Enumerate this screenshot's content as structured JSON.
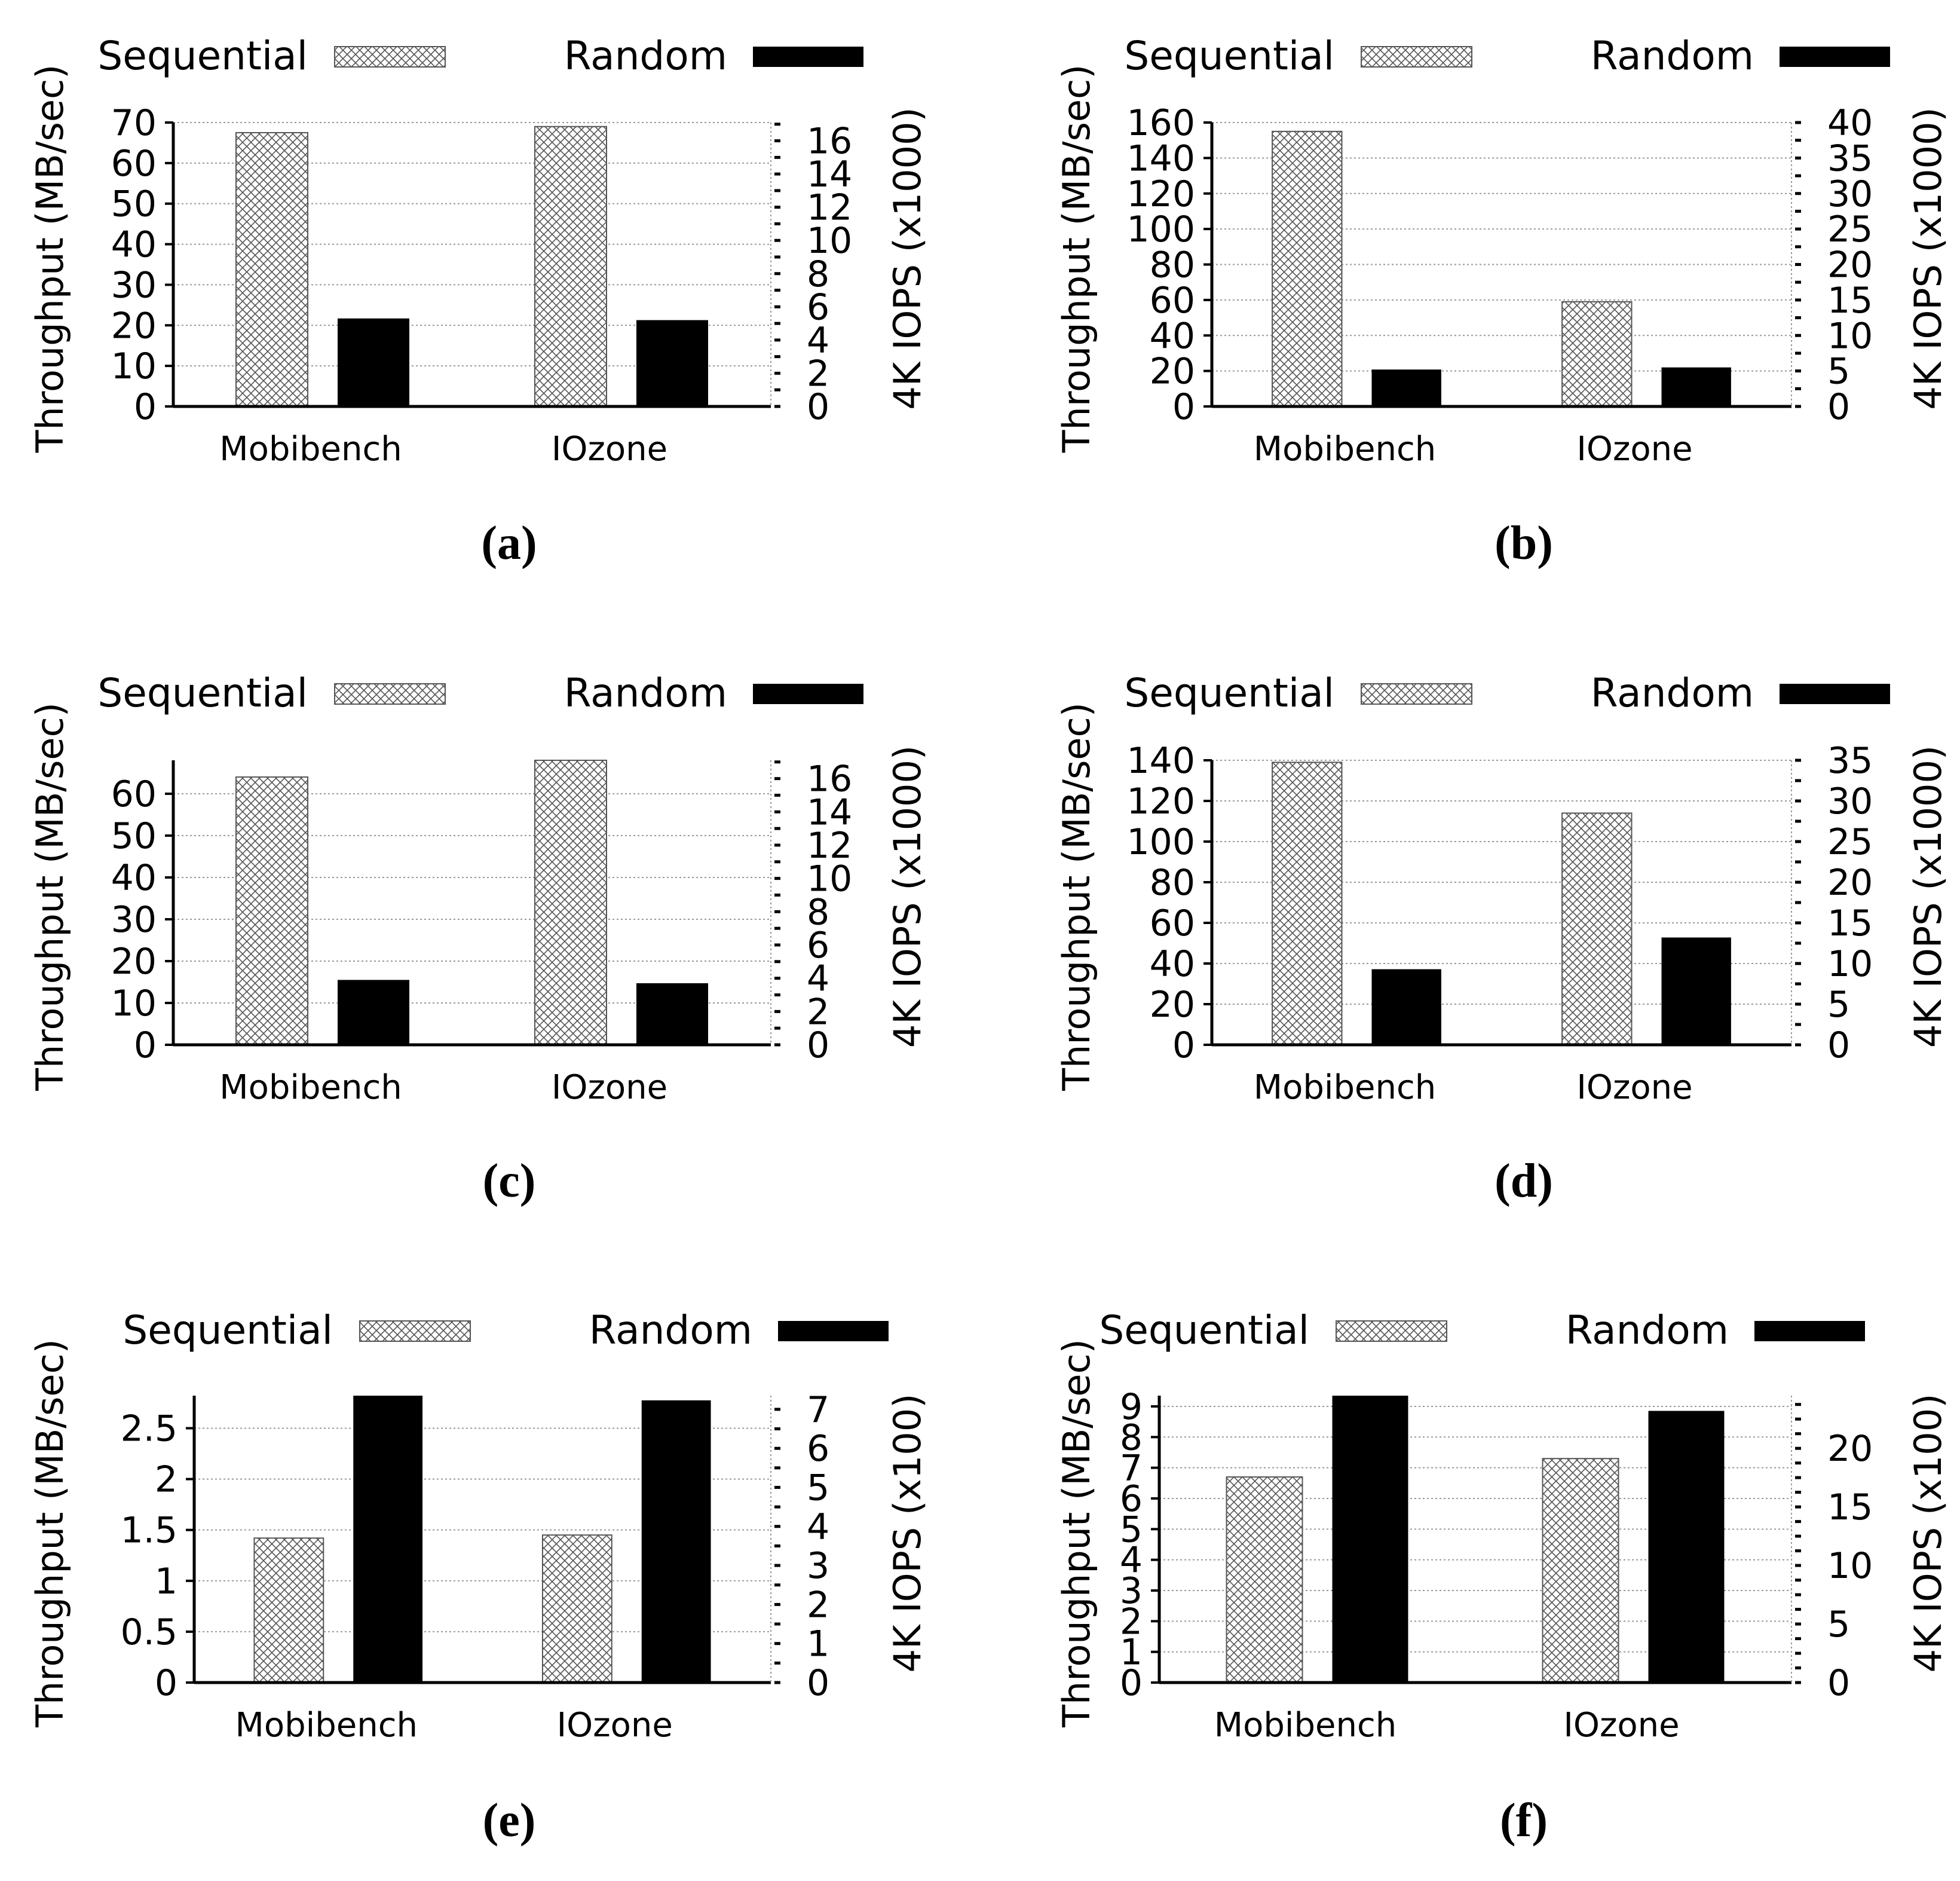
{
  "figure": {
    "legend": {
      "sequential_label": "Sequential",
      "random_label": "Random"
    },
    "colors": {
      "bar_random": "#000000",
      "hatch_stroke": "#555555",
      "grid": "#999999",
      "axis": "#000000",
      "background": "#ffffff"
    },
    "left_axis_label": "Throughput (MB/sec)"
  },
  "chart_data": [
    {
      "type": "bar",
      "panel": "a",
      "caption": "(a)",
      "categories": [
        "Mobibench",
        "IOzone"
      ],
      "series": [
        {
          "name": "Sequential",
          "axis": "left",
          "values": [
            67.5,
            69
          ]
        },
        {
          "name": "Random",
          "axis": "right",
          "values": [
            5.3,
            5.2
          ]
        }
      ],
      "ylabel": "Throughput (MB/sec)",
      "ylim": [
        0,
        70
      ],
      "yticks": [
        0,
        10,
        20,
        30,
        40,
        50,
        60,
        70
      ],
      "y2label": "4K IOPS (x1000)",
      "y2lim": [
        0,
        17.1
      ],
      "y2ticks": [
        0,
        2,
        4,
        6,
        8,
        10,
        12,
        14,
        16
      ],
      "y2minor": 1,
      "grid": true,
      "legend": "top"
    },
    {
      "type": "bar",
      "panel": "b",
      "caption": "(b)",
      "categories": [
        "Mobibench",
        "IOzone"
      ],
      "series": [
        {
          "name": "Sequential",
          "axis": "left",
          "values": [
            155,
            59
          ]
        },
        {
          "name": "Random",
          "axis": "right",
          "values": [
            5.2,
            5.5
          ]
        }
      ],
      "ylabel": "Throughput (MB/sec)",
      "ylim": [
        0,
        160
      ],
      "yticks": [
        0,
        20,
        40,
        60,
        80,
        100,
        120,
        140,
        160
      ],
      "y2label": "4K IOPS (x1000)",
      "y2lim": [
        0,
        40
      ],
      "y2ticks": [
        0,
        5,
        10,
        15,
        20,
        25,
        30,
        35,
        40
      ],
      "y2minor": 2.5,
      "grid": true,
      "legend": "top"
    },
    {
      "type": "bar",
      "panel": "c",
      "caption": "(c)",
      "categories": [
        "Mobibench",
        "IOzone"
      ],
      "series": [
        {
          "name": "Sequential",
          "axis": "left",
          "values": [
            64,
            68
          ]
        },
        {
          "name": "Random",
          "axis": "right",
          "values": [
            3.9,
            3.7
          ]
        }
      ],
      "ylabel": "Throughput (MB/sec)",
      "ylim": [
        0,
        68
      ],
      "yticks": [
        0,
        10,
        20,
        30,
        40,
        50,
        60
      ],
      "y2label": "4K IOPS (x1000)",
      "y2lim": [
        0,
        17.1
      ],
      "y2ticks": [
        0,
        2,
        4,
        6,
        8,
        10,
        12,
        14,
        16
      ],
      "y2minor": 1,
      "grid": true,
      "legend": "top"
    },
    {
      "type": "bar",
      "panel": "d",
      "caption": "(d)",
      "categories": [
        "Mobibench",
        "IOzone"
      ],
      "series": [
        {
          "name": "Sequential",
          "axis": "left",
          "values": [
            139,
            114
          ]
        },
        {
          "name": "Random",
          "axis": "right",
          "values": [
            9.3,
            13.2
          ]
        }
      ],
      "ylabel": "Throughput (MB/sec)",
      "ylim": [
        0,
        140
      ],
      "yticks": [
        0,
        20,
        40,
        60,
        80,
        100,
        120,
        140
      ],
      "y2label": "4K IOPS (x1000)",
      "y2lim": [
        0,
        35
      ],
      "y2ticks": [
        0,
        5,
        10,
        15,
        20,
        25,
        30,
        35
      ],
      "y2minor": 2.5,
      "grid": true,
      "legend": "top"
    },
    {
      "type": "bar",
      "panel": "e",
      "caption": "(e)",
      "categories": [
        "Mobibench",
        "IOzone"
      ],
      "series": [
        {
          "name": "Sequential",
          "axis": "left",
          "values": [
            1.42,
            1.45
          ]
        },
        {
          "name": "Random",
          "axis": "right",
          "values": [
            7.35,
            7.23
          ]
        }
      ],
      "ylabel": "Throughput (MB/sec)",
      "ylim": [
        0,
        2.82
      ],
      "yticks": [
        0,
        0.5,
        1,
        1.5,
        2,
        2.5
      ],
      "y2label": "4K IOPS (x100)",
      "y2lim": [
        0,
        7.35
      ],
      "y2ticks": [
        0,
        1,
        2,
        3,
        4,
        5,
        6,
        7
      ],
      "y2minor": 0.5,
      "grid": true,
      "legend": "top"
    },
    {
      "type": "bar",
      "panel": "f",
      "caption": "(f)",
      "categories": [
        "Mobibench",
        "IOzone"
      ],
      "series": [
        {
          "name": "Sequential",
          "axis": "left",
          "values": [
            6.7,
            7.3
          ]
        },
        {
          "name": "Random",
          "axis": "right",
          "values": [
            24.5,
            23.2
          ]
        }
      ],
      "ylabel": "Throughput (MB/sec)",
      "ylim": [
        0,
        9.35
      ],
      "yticks": [
        0,
        1,
        2,
        3,
        4,
        5,
        6,
        7,
        8,
        9
      ],
      "y2label": "4K IOPS (x100)",
      "y2lim": [
        0,
        24.5
      ],
      "y2ticks": [
        0,
        5,
        10,
        15,
        20
      ],
      "y2minor": 1.25,
      "grid": true,
      "legend": "top"
    }
  ]
}
